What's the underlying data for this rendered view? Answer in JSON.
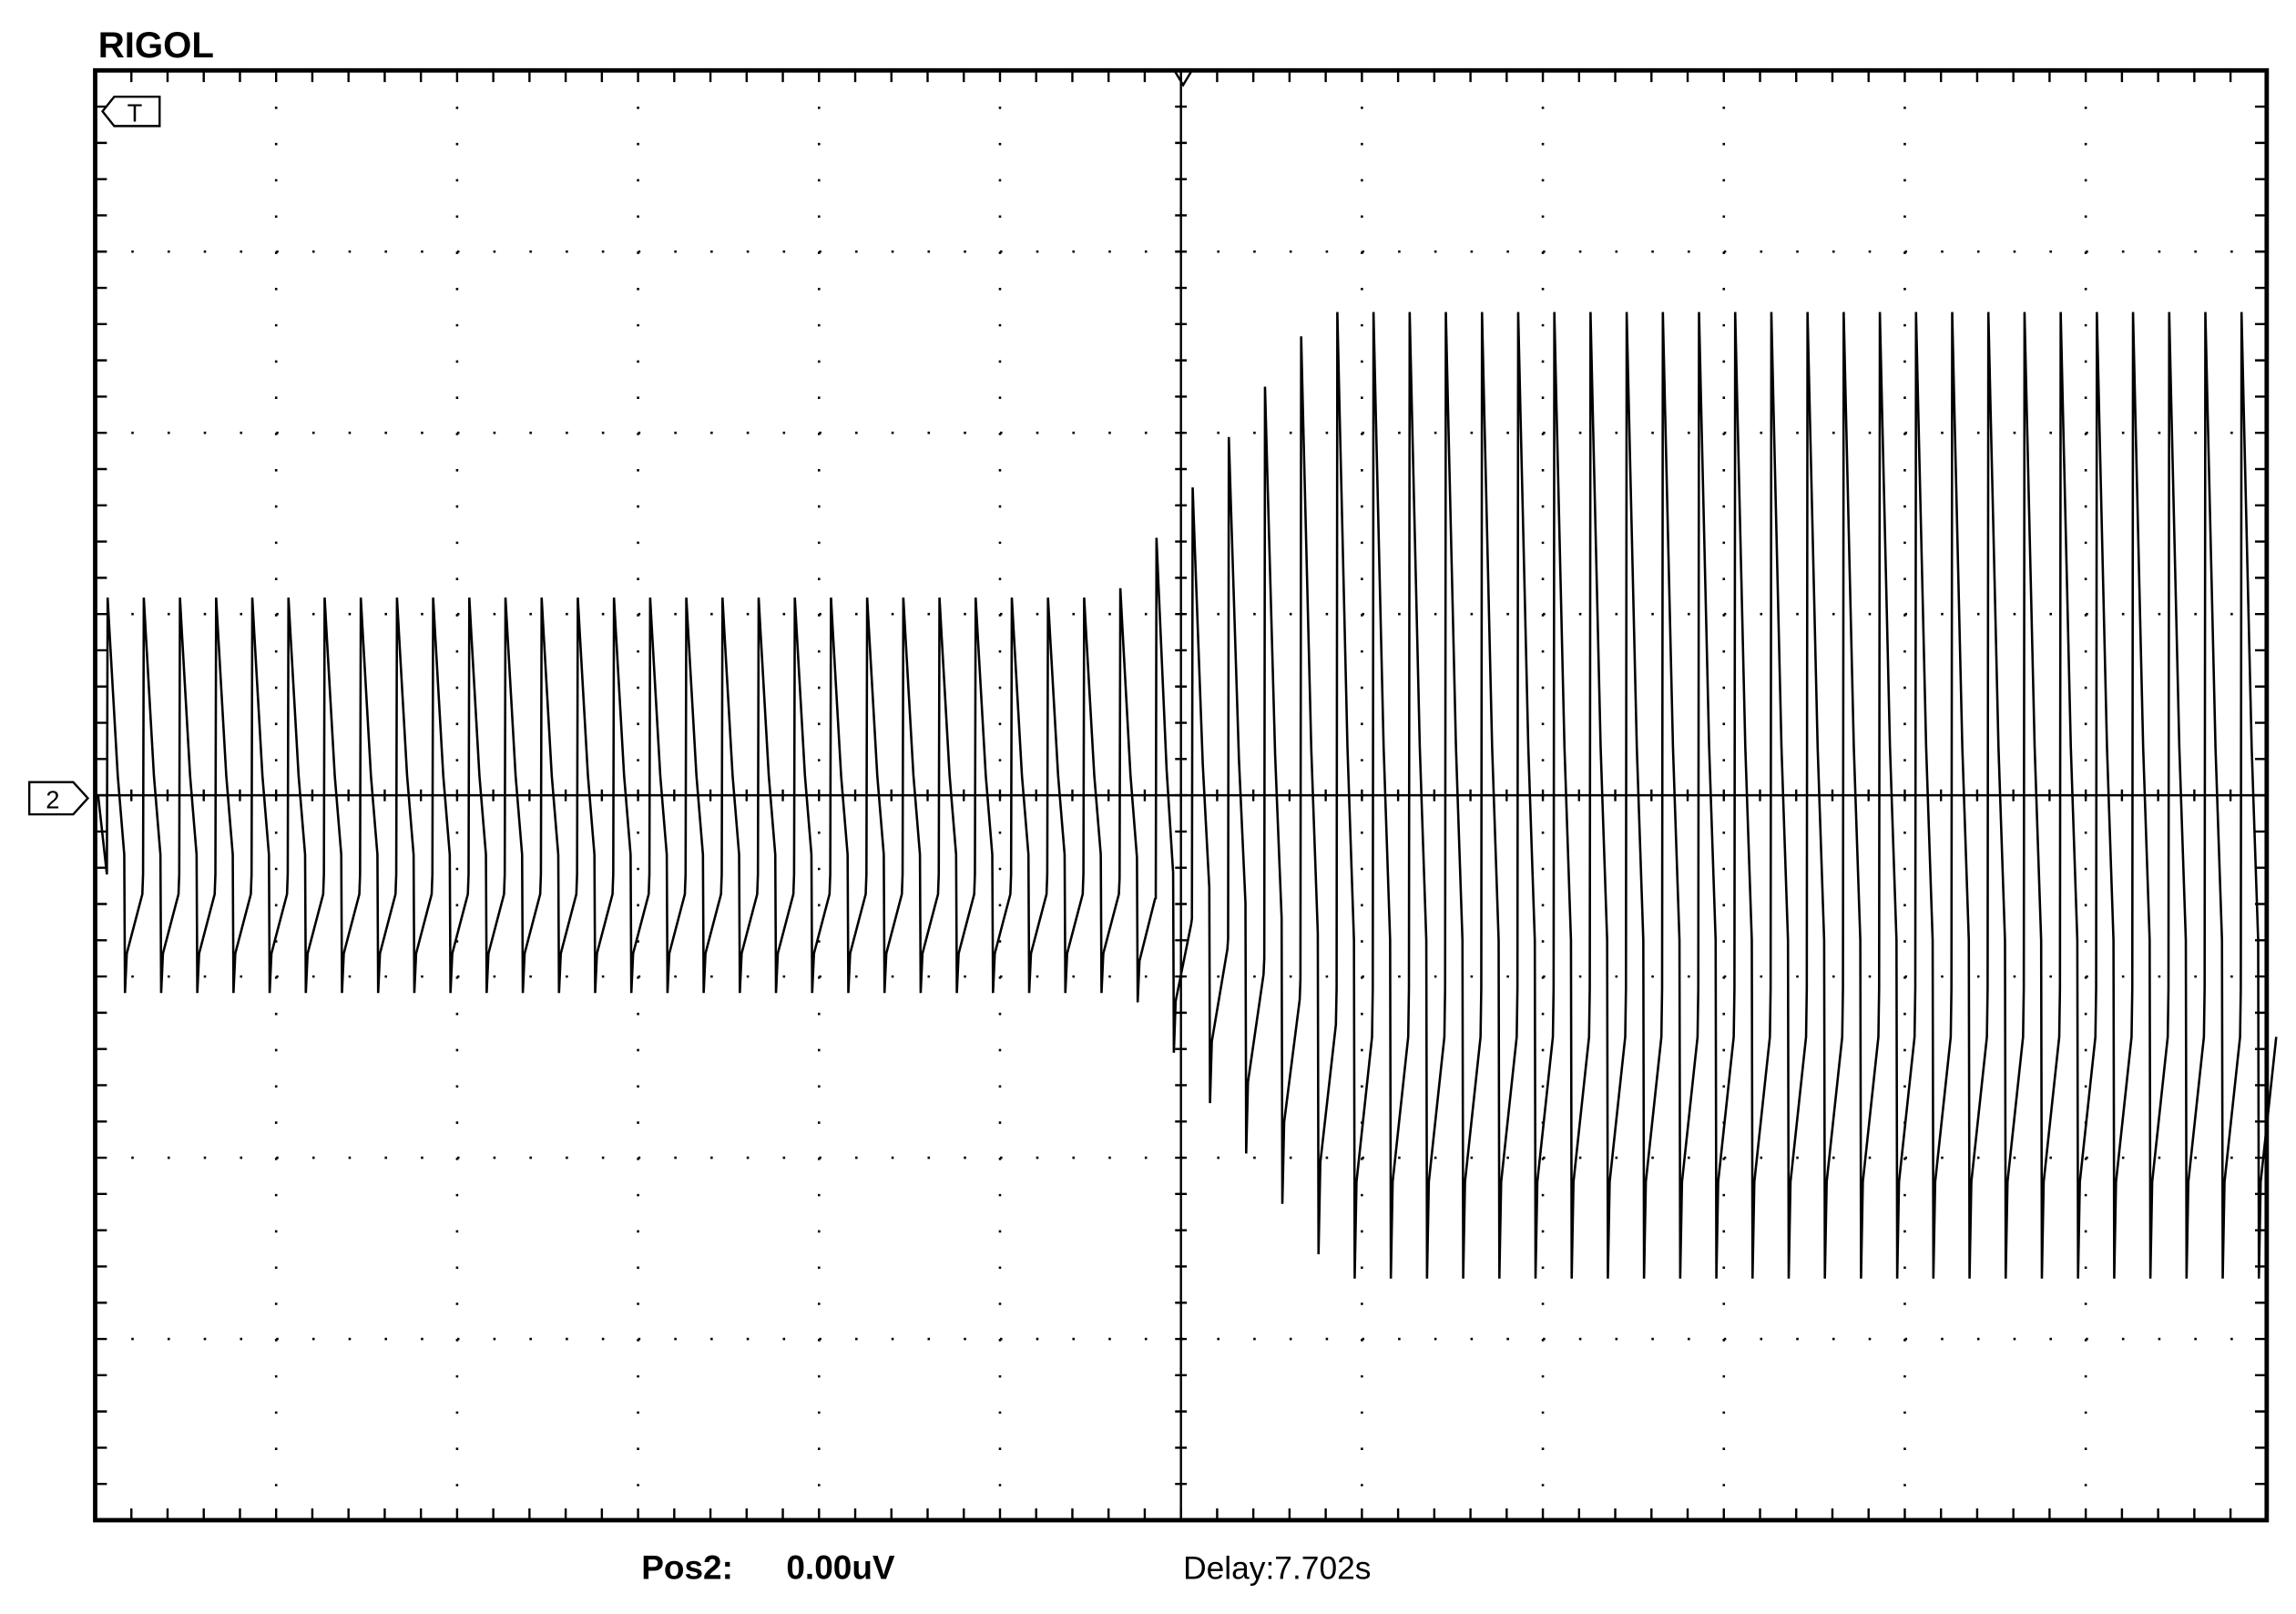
{
  "header": {
    "brand": "RIGOL"
  },
  "markers": {
    "trigger": "T",
    "channel": "2"
  },
  "status": {
    "pos_label": "Pos2:",
    "pos_value": "0.00uV",
    "delay": "Delay:7.702s"
  }
}
